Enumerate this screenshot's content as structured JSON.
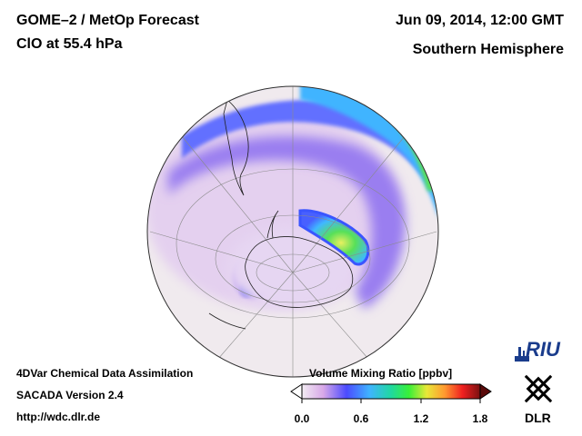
{
  "header": {
    "title": "GOME–2 / MetOp Forecast",
    "quantity": "ClO at 55.4 hPa",
    "datetime": "Jun 09, 2014, 12:00 GMT",
    "region": "Southern Hemisphere"
  },
  "footer": {
    "line1": "4DVar Chemical Data Assimilation",
    "line2": "SACADA Version 2.4",
    "line3": "http://wdc.dlr.de"
  },
  "colorbar": {
    "label": "Volume Mixing Ratio [ppbv]",
    "ticks": [
      "0.0",
      "0.6",
      "1.2",
      "1.8"
    ],
    "range": [
      0.0,
      1.8
    ],
    "colors": [
      "#f2ecf2",
      "#d8a8e8",
      "#4b4bff",
      "#3fb4ff",
      "#20d8a0",
      "#38f038",
      "#e8e838",
      "#ff9a30",
      "#f02020",
      "#7a1010"
    ]
  },
  "logos": {
    "riu": "RIU",
    "dlr": "DLR"
  },
  "map_colors": {
    "background": "#f0eaee",
    "low": "#dcc6ec",
    "mid": "#a88ef0",
    "blue": "#4860ff",
    "cyan": "#40b8ff",
    "green": "#58e058",
    "yellow": "#e8f060"
  }
}
